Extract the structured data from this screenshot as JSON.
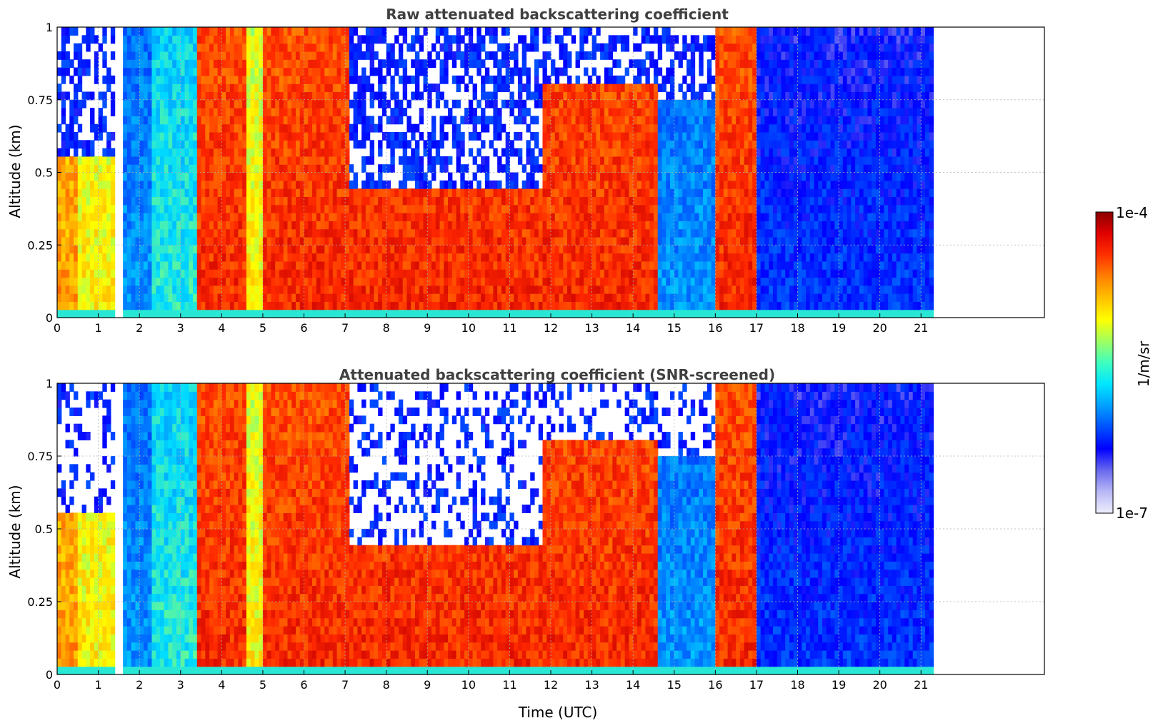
{
  "chart_data": [
    {
      "type": "heatmap",
      "title": "Raw attenuated backscattering coefficient",
      "ylabel": "Altitude (km)",
      "xlabel": "",
      "xlim": [
        0,
        24
      ],
      "ylim": [
        0,
        1
      ],
      "x_ticks": [
        "0",
        "1",
        "2",
        "3",
        "4",
        "5",
        "6",
        "7",
        "8",
        "9",
        "10",
        "11",
        "12",
        "13",
        "14",
        "15",
        "16",
        "17",
        "18",
        "19",
        "20",
        "21"
      ],
      "y_ticks": [
        "0",
        "0.25",
        "0.5",
        "0.75",
        "1"
      ],
      "data_extent_hours": [
        0,
        21.3
      ],
      "grid": true,
      "screened": false,
      "colorscale": "jet",
      "time_profiles": [
        {
          "t_start": 0.0,
          "t_end": 0.5,
          "level": "med-high",
          "top_altitude": 0.55
        },
        {
          "t_start": 0.5,
          "t_end": 1.4,
          "level": "medium",
          "top_altitude": 0.55
        },
        {
          "t_start": 1.4,
          "t_end": 1.55,
          "level": "no data"
        },
        {
          "t_start": 1.55,
          "t_end": 2.3,
          "level": "low",
          "top_altitude": 1.0
        },
        {
          "t_start": 2.3,
          "t_end": 3.4,
          "level": "low-medium",
          "top_altitude": 1.0
        },
        {
          "t_start": 3.4,
          "t_end": 4.6,
          "level": "high",
          "top_altitude": 1.0
        },
        {
          "t_start": 4.6,
          "t_end": 5.0,
          "level": "medium",
          "top_altitude": 1.0
        },
        {
          "t_start": 5.0,
          "t_end": 7.1,
          "level": "high",
          "top_altitude": 1.0
        },
        {
          "t_start": 7.1,
          "t_end": 11.8,
          "level": "high",
          "top_altitude": 0.45
        },
        {
          "t_start": 11.8,
          "t_end": 13.3,
          "level": "high",
          "top_altitude": 0.8
        },
        {
          "t_start": 13.3,
          "t_end": 14.6,
          "level": "high",
          "top_altitude": 0.8
        },
        {
          "t_start": 14.6,
          "t_end": 16.0,
          "level": "low",
          "top_altitude": 0.75
        },
        {
          "t_start": 16.0,
          "t_end": 17.0,
          "level": "high",
          "top_altitude": 1.0
        },
        {
          "t_start": 17.0,
          "t_end": 21.3,
          "level": "very low",
          "top_altitude": 1.0
        }
      ]
    },
    {
      "type": "heatmap",
      "title": "Attenuated backscattering coefficient (SNR-screened)",
      "ylabel": "Altitude (km)",
      "xlabel": "Time (UTC)",
      "xlim": [
        0,
        24
      ],
      "ylim": [
        0,
        1
      ],
      "x_ticks": [
        "0",
        "1",
        "2",
        "3",
        "4",
        "5",
        "6",
        "7",
        "8",
        "9",
        "10",
        "11",
        "12",
        "13",
        "14",
        "15",
        "16",
        "17",
        "18",
        "19",
        "20",
        "21"
      ],
      "y_ticks": [
        "0",
        "0.25",
        "0.5",
        "0.75",
        "1"
      ],
      "data_extent_hours": [
        0,
        21.3
      ],
      "grid": true,
      "screened": true,
      "colorscale": "jet"
    }
  ],
  "colorbar": {
    "max_label": "1e-4",
    "min_label": "1e-7",
    "label": "1/m/sr",
    "colors": [
      "#eeeefd",
      "#b8b8f5",
      "#6868ee",
      "#0000ff",
      "#0050ff",
      "#00a0ff",
      "#00e6ff",
      "#40ffbf",
      "#a0ff60",
      "#ffff00",
      "#ffc000",
      "#ff8000",
      "#ff3000",
      "#e00000",
      "#8b0000"
    ]
  }
}
